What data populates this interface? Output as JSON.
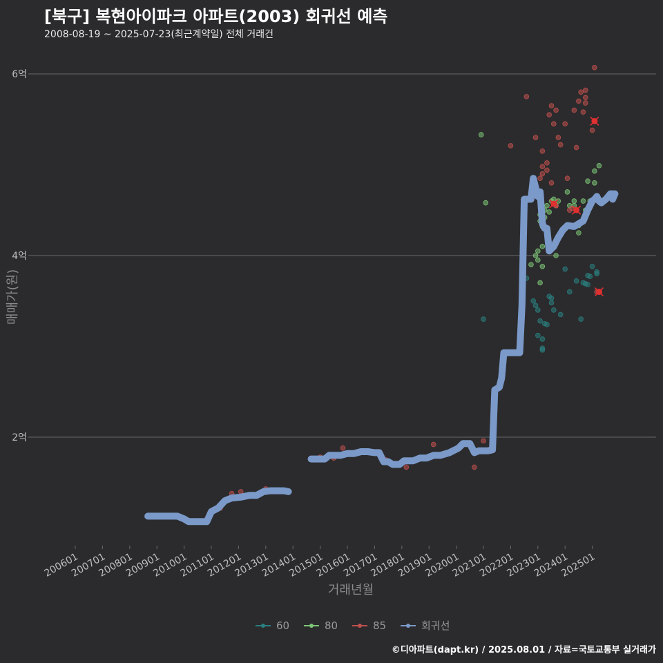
{
  "header": {
    "title": "[북구] 복현아이파크 아파트(2003) 회귀선 예측",
    "subtitle": "2008-08-19 ~ 2025-07-23(최근계약일) 전체 거래건"
  },
  "footer": {
    "caption": "©디아파트(dapt.kr) / 2025.08.01 / 자료=국토교통부 실거래가"
  },
  "chart_data": {
    "type": "scatter",
    "xlabel": "거래년월",
    "ylabel": "매매가(원)",
    "x_range": [
      "2006-01",
      "2025-12"
    ],
    "y_range": [
      0.95,
      6.25
    ],
    "y_ticks": [
      {
        "value": 2,
        "label": "2억"
      },
      {
        "value": 4,
        "label": "4억"
      },
      {
        "value": 6,
        "label": "6억"
      }
    ],
    "x_ticks": [
      {
        "value": "2006-01",
        "label": "200601"
      },
      {
        "value": "2007-01",
        "label": "200701"
      },
      {
        "value": "2008-01",
        "label": "200801"
      },
      {
        "value": "2009-01",
        "label": "200901"
      },
      {
        "value": "2010-01",
        "label": "201001"
      },
      {
        "value": "2011-01",
        "label": "201101"
      },
      {
        "value": "2012-01",
        "label": "201201"
      },
      {
        "value": "2013-01",
        "label": "201301"
      },
      {
        "value": "2014-01",
        "label": "201401"
      },
      {
        "value": "2015-01",
        "label": "201501"
      },
      {
        "value": "2016-01",
        "label": "201601"
      },
      {
        "value": "2017-01",
        "label": "201701"
      },
      {
        "value": "2018-01",
        "label": "201801"
      },
      {
        "value": "2019-01",
        "label": "201901"
      },
      {
        "value": "2020-01",
        "label": "202001"
      },
      {
        "value": "2021-01",
        "label": "202101"
      },
      {
        "value": "2022-01",
        "label": "202201"
      },
      {
        "value": "2023-01",
        "label": "202301"
      },
      {
        "value": "2024-01",
        "label": "202401"
      },
      {
        "value": "2025-01",
        "label": "202501"
      }
    ],
    "grid": "horizontal",
    "legend_position": "bottom",
    "legend": [
      {
        "label": "60",
        "color": "#2a7f7f"
      },
      {
        "label": "80",
        "color": "#7cc576"
      },
      {
        "label": "85",
        "color": "#c0504d"
      },
      {
        "label": "회귀선",
        "color": "#7b9ac9"
      }
    ],
    "series": [
      {
        "name": "60",
        "color": "#2a7f7f",
        "points": [
          [
            "2021-01",
            3.3
          ],
          [
            "2022-08",
            3.75
          ],
          [
            "2022-11",
            3.5
          ],
          [
            "2022-12",
            3.45
          ],
          [
            "2023-01",
            3.12
          ],
          [
            "2023-02",
            3.28
          ],
          [
            "2023-03",
            2.96
          ],
          [
            "2023-03",
            2.98
          ],
          [
            "2023-03",
            3.08
          ],
          [
            "2023-04",
            3.25
          ],
          [
            "2023-05",
            3.24
          ],
          [
            "2023-06",
            3.55
          ],
          [
            "2023-07",
            3.48
          ],
          [
            "2023-07",
            3.53
          ],
          [
            "2023-08",
            3.4
          ],
          [
            "2023-11",
            3.35
          ],
          [
            "2024-01",
            3.85
          ],
          [
            "2024-03",
            3.6
          ],
          [
            "2024-06",
            3.72
          ],
          [
            "2024-08",
            3.3
          ],
          [
            "2024-09",
            3.7
          ],
          [
            "2024-10",
            3.69
          ],
          [
            "2024-11",
            3.78
          ],
          [
            "2024-12",
            3.77
          ],
          [
            "2025-01",
            3.88
          ],
          [
            "2025-03",
            3.8
          ],
          [
            "2025-03",
            3.82
          ],
          [
            "2025-04",
            3.6
          ],
          [
            "2024-11",
            3.68
          ],
          [
            "2023-01",
            3.4
          ]
        ]
      },
      {
        "name": "80",
        "color": "#7cc576",
        "points": [
          [
            "2020-12",
            5.33
          ],
          [
            "2021-02",
            4.58
          ],
          [
            "2022-10",
            3.9
          ],
          [
            "2022-12",
            4.0
          ],
          [
            "2023-01",
            4.05
          ],
          [
            "2023-01",
            3.95
          ],
          [
            "2023-02",
            4.38
          ],
          [
            "2023-02",
            4.45
          ],
          [
            "2023-03",
            4.1
          ],
          [
            "2023-03",
            3.88
          ],
          [
            "2023-04",
            4.42
          ],
          [
            "2023-04",
            4.5
          ],
          [
            "2023-05",
            4.55
          ],
          [
            "2023-06",
            4.48
          ],
          [
            "2023-07",
            4.6
          ],
          [
            "2023-08",
            4.62
          ],
          [
            "2023-09",
            4.0
          ],
          [
            "2023-09",
            4.55
          ],
          [
            "2023-10",
            4.6
          ],
          [
            "2024-02",
            4.7
          ],
          [
            "2024-05",
            4.6
          ],
          [
            "2024-05",
            4.55
          ],
          [
            "2024-07",
            4.33
          ],
          [
            "2024-07",
            4.25
          ],
          [
            "2024-10",
            4.5
          ],
          [
            "2024-11",
            4.82
          ],
          [
            "2024-12",
            4.6
          ],
          [
            "2025-02",
            4.8
          ],
          [
            "2025-02",
            4.93
          ],
          [
            "2025-04",
            4.99
          ],
          [
            "2023-02",
            3.7
          ],
          [
            "2023-03",
            4.32
          ],
          [
            "2024-09",
            4.6
          ],
          [
            "2024-03",
            4.55
          ]
        ]
      },
      {
        "name": "85",
        "color": "#c0504d",
        "points": [
          [
            "2011-05",
            1.22
          ],
          [
            "2011-06",
            1.28
          ],
          [
            "2011-08",
            1.32
          ],
          [
            "2011-10",
            1.38
          ],
          [
            "2012-02",
            1.4
          ],
          [
            "2013-01",
            1.43
          ],
          [
            "2015-01",
            1.78
          ],
          [
            "2015-07",
            1.77
          ],
          [
            "2015-11",
            1.88
          ],
          [
            "2017-06",
            1.75
          ],
          [
            "2018-03",
            1.67
          ],
          [
            "2019-03",
            1.92
          ],
          [
            "2020-09",
            1.67
          ],
          [
            "2020-09",
            1.85
          ],
          [
            "2021-01",
            1.96
          ],
          [
            "2022-01",
            5.21
          ],
          [
            "2022-08",
            5.75
          ],
          [
            "2023-02",
            4.85
          ],
          [
            "2023-03",
            4.9
          ],
          [
            "2023-05",
            4.94
          ],
          [
            "2023-05",
            5.02
          ],
          [
            "2023-06",
            5.55
          ],
          [
            "2023-07",
            5.65
          ],
          [
            "2023-07",
            4.8
          ],
          [
            "2023-08",
            5.45
          ],
          [
            "2023-09",
            5.6
          ],
          [
            "2023-09",
            4.55
          ],
          [
            "2023-10",
            5.3
          ],
          [
            "2023-11",
            5.22
          ],
          [
            "2024-01",
            5.45
          ],
          [
            "2024-02",
            4.85
          ],
          [
            "2024-03",
            4.5
          ],
          [
            "2024-05",
            5.6
          ],
          [
            "2024-06",
            5.19
          ],
          [
            "2024-07",
            5.7
          ],
          [
            "2024-08",
            5.8
          ],
          [
            "2024-09",
            5.58
          ],
          [
            "2024-10",
            5.82
          ],
          [
            "2024-10",
            5.74
          ],
          [
            "2024-10",
            5.68
          ],
          [
            "2025-01",
            5.38
          ],
          [
            "2025-02",
            6.07
          ],
          [
            "2023-03",
            5.15
          ],
          [
            "2022-12",
            5.3
          ],
          [
            "2023-03",
            4.98
          ],
          [
            "2024-06",
            4.5
          ],
          [
            "2024-04",
            4.52
          ],
          [
            "2025-03",
            3.6
          ]
        ]
      },
      {
        "name": "회귀선",
        "color": "#7b9ac9",
        "segments": [
          [
            [
              "2008-09",
              1.13
            ],
            [
              "2009-01",
              1.13
            ],
            [
              "2009-06",
              1.13
            ],
            [
              "2009-10",
              1.13
            ],
            [
              "2010-01",
              1.1
            ],
            [
              "2010-03",
              1.07
            ],
            [
              "2010-06",
              1.07
            ],
            [
              "2010-09",
              1.07
            ],
            [
              "2010-11",
              1.07
            ],
            [
              "2011-01",
              1.18
            ],
            [
              "2011-04",
              1.22
            ],
            [
              "2011-07",
              1.3
            ],
            [
              "2011-10",
              1.33
            ],
            [
              "2012-02",
              1.34
            ],
            [
              "2012-06",
              1.36
            ],
            [
              "2012-09",
              1.36
            ],
            [
              "2012-12",
              1.4
            ],
            [
              "2013-03",
              1.41
            ],
            [
              "2013-06",
              1.41
            ],
            [
              "2013-09",
              1.41
            ],
            [
              "2013-11",
              1.4
            ]
          ],
          [
            [
              "2014-09",
              1.76
            ],
            [
              "2014-12",
              1.76
            ],
            [
              "2015-03",
              1.76
            ],
            [
              "2015-05",
              1.8
            ],
            [
              "2015-10",
              1.8
            ],
            [
              "2016-01",
              1.82
            ],
            [
              "2016-04",
              1.82
            ],
            [
              "2016-07",
              1.84
            ],
            [
              "2016-10",
              1.84
            ],
            [
              "2017-01",
              1.83
            ],
            [
              "2017-03",
              1.83
            ],
            [
              "2017-05",
              1.73
            ],
            [
              "2017-07",
              1.73
            ],
            [
              "2017-09",
              1.7
            ],
            [
              "2017-12",
              1.7
            ],
            [
              "2018-02",
              1.74
            ],
            [
              "2018-06",
              1.74
            ],
            [
              "2018-09",
              1.77
            ],
            [
              "2018-12",
              1.77
            ],
            [
              "2019-03",
              1.8
            ],
            [
              "2019-06",
              1.8
            ],
            [
              "2019-10",
              1.83
            ],
            [
              "2020-02",
              1.88
            ],
            [
              "2020-04",
              1.93
            ],
            [
              "2020-07",
              1.93
            ],
            [
              "2020-09",
              1.83
            ],
            [
              "2020-11",
              1.85
            ],
            [
              "2021-01",
              1.85
            ],
            [
              "2021-03",
              1.85
            ],
            [
              "2021-05",
              1.86
            ],
            [
              "2021-06",
              2.52
            ],
            [
              "2021-08",
              2.55
            ],
            [
              "2021-09",
              2.65
            ],
            [
              "2021-10",
              2.93
            ],
            [
              "2021-12",
              2.93
            ],
            [
              "2022-03",
              2.93
            ],
            [
              "2022-05",
              2.93
            ],
            [
              "2022-06",
              3.45
            ],
            [
              "2022-07",
              4.62
            ],
            [
              "2022-10",
              4.62
            ],
            [
              "2022-11",
              4.85
            ],
            [
              "2023-01",
              4.65
            ],
            [
              "2023-02",
              4.7
            ],
            [
              "2023-03",
              4.35
            ],
            [
              "2023-04",
              4.3
            ],
            [
              "2023-05",
              4.3
            ],
            [
              "2023-06",
              4.05
            ],
            [
              "2023-08",
              4.1
            ],
            [
              "2023-10",
              4.2
            ],
            [
              "2023-12",
              4.28
            ],
            [
              "2024-02",
              4.33
            ],
            [
              "2024-05",
              4.32
            ],
            [
              "2024-07",
              4.35
            ],
            [
              "2024-09",
              4.38
            ],
            [
              "2024-11",
              4.5
            ],
            [
              "2025-01",
              4.6
            ],
            [
              "2025-02",
              4.62
            ],
            [
              "2025-03",
              4.65
            ],
            [
              "2025-04",
              4.6
            ],
            [
              "2025-05",
              4.58
            ],
            [
              "2025-06",
              4.6
            ],
            [
              "2025-07",
              4.62
            ],
            [
              "2025-08",
              4.65
            ],
            [
              "2025-09",
              4.68
            ],
            [
              "2025-10",
              4.68
            ],
            [
              "2025-10",
              4.62
            ],
            [
              "2025-11",
              4.68
            ]
          ]
        ]
      }
    ],
    "highlights": [
      [
        "2023-08",
        4.57
      ],
      [
        "2024-06",
        4.5
      ],
      [
        "2025-02",
        5.48
      ],
      [
        "2025-04",
        3.6
      ]
    ]
  }
}
